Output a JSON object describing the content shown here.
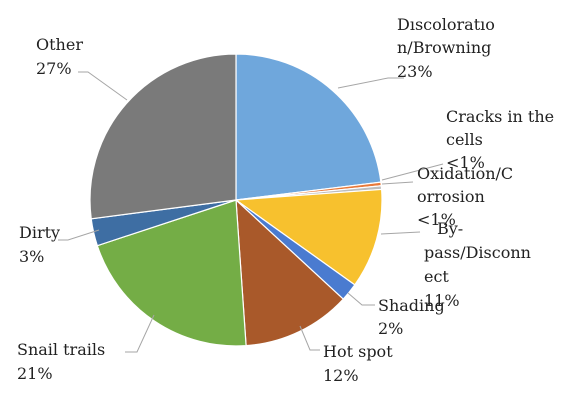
{
  "chart_data": {
    "type": "pie",
    "title": "",
    "slices": [
      {
        "name": "Dıscoloratıo n/Browning",
        "value": 23,
        "value_label": "23%",
        "color": "#6fa7dc"
      },
      {
        "name": "Cracks in the cells",
        "value": 0.4,
        "value_label": "<1%",
        "color": "#e8793a"
      },
      {
        "name": "Oxidation/C orrosion",
        "value": 0.4,
        "value_label": "<1%",
        "color": "#bdbdbd"
      },
      {
        "name": "By- pass/Disconn ect",
        "value": 11,
        "value_label": "11%",
        "color": "#f7c12e"
      },
      {
        "name": "Shading",
        "value": 2,
        "value_label": "2%",
        "color": "#4a7bd0"
      },
      {
        "name": "Hot spot",
        "value": 12,
        "value_label": "12%",
        "color": "#a9592a"
      },
      {
        "name": "Snail trails",
        "value": 21,
        "value_label": "21%",
        "color": "#74ad46"
      },
      {
        "name": "Dirty",
        "value": 3,
        "value_label": "3%",
        "color": "#3e6ea3"
      },
      {
        "name": "Other",
        "value": 27,
        "value_label": "27%",
        "color": "#7a7a7a"
      }
    ],
    "legend": "none"
  }
}
